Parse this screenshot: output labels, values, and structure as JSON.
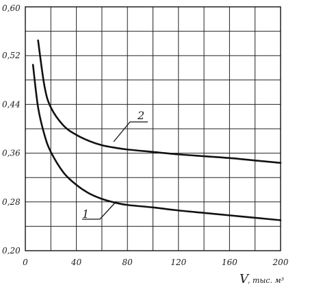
{
  "chart_data": {
    "type": "line",
    "xlim": [
      0,
      200
    ],
    "ylim": [
      0.2,
      0.6
    ],
    "grid": true,
    "x_major_ticks": [
      0,
      40,
      80,
      120,
      160,
      200
    ],
    "x_tick_labels": [
      "0",
      "40",
      "80",
      "120",
      "160",
      "200"
    ],
    "y_major_ticks": [
      0.2,
      0.28,
      0.36,
      0.44,
      0.52,
      0.6
    ],
    "y_tick_labels": [
      "0,20",
      "0,28",
      "0,36",
      "0,44",
      "0,52",
      "0,60"
    ],
    "xlabel": "V",
    "xlabel_unit": ", тыс. м³",
    "ylabel": "",
    "series": [
      {
        "label": "1",
        "x": [
          6,
          10,
          15,
          20,
          30,
          40,
          50,
          60,
          70,
          80,
          100,
          120,
          140,
          160,
          180,
          200
        ],
        "y": [
          0.505,
          0.435,
          0.39,
          0.362,
          0.328,
          0.308,
          0.294,
          0.285,
          0.279,
          0.275,
          0.271,
          0.266,
          0.262,
          0.258,
          0.254,
          0.25
        ]
      },
      {
        "label": "2",
        "x": [
          10,
          15,
          20,
          30,
          40,
          50,
          60,
          70,
          80,
          100,
          120,
          140,
          160,
          180,
          200
        ],
        "y": [
          0.545,
          0.47,
          0.435,
          0.405,
          0.39,
          0.38,
          0.373,
          0.369,
          0.366,
          0.362,
          0.358,
          0.355,
          0.352,
          0.348,
          0.344
        ]
      }
    ]
  }
}
